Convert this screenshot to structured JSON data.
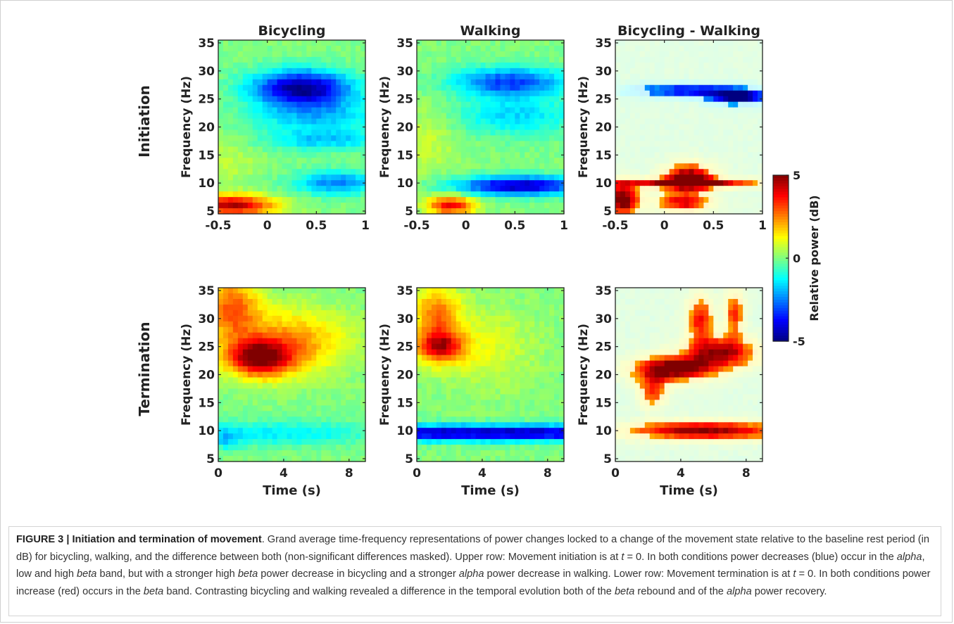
{
  "chart_data": {
    "type": "heatmap",
    "colormap": "jet",
    "colorbar": {
      "label": "Relative power (dB)",
      "ticks": [
        5,
        0,
        -5
      ],
      "range": [
        -5,
        5
      ]
    },
    "row_labels": [
      "Initiation",
      "Termination"
    ],
    "column_titles": [
      "Bicycling",
      "Walking",
      "Bicycling - Walking"
    ],
    "ylabel": "Frequency (Hz)",
    "xlabel": "Time (s)",
    "yticks": [
      5,
      10,
      15,
      20,
      25,
      30,
      35
    ],
    "ylim": [
      4.5,
      35.5
    ],
    "rows": [
      {
        "xlim": [
          -0.5,
          1
        ],
        "xticks": [
          -0.5,
          0,
          0.5,
          1
        ],
        "xticklabels": [
          "-0.5",
          "0",
          "0.5",
          "1"
        ]
      },
      {
        "xlim": [
          0,
          9
        ],
        "xticks": [
          0,
          4,
          8
        ],
        "xticklabels": [
          "0",
          "4",
          "8"
        ]
      }
    ],
    "panels": [
      {
        "row": 0,
        "col": 0,
        "masked": false,
        "features": [
          {
            "t": 0.35,
            "f": 27,
            "st": 0.35,
            "sf": 2.2,
            "v": -4.8
          },
          {
            "t": 0.5,
            "f": 22,
            "st": 0.45,
            "sf": 2.5,
            "v": -1.8
          },
          {
            "t": 0.6,
            "f": 17.5,
            "st": 0.45,
            "sf": 1.3,
            "v": -1.5
          },
          {
            "t": 0.7,
            "f": 10,
            "st": 0.3,
            "sf": 1.5,
            "v": -2.5
          },
          {
            "t": -0.35,
            "f": 6,
            "st": 0.3,
            "sf": 1.3,
            "v": 4.5
          },
          {
            "t": -0.4,
            "f": 14,
            "st": 0.25,
            "sf": 3,
            "v": 0.6
          }
        ]
      },
      {
        "row": 0,
        "col": 1,
        "masked": false,
        "features": [
          {
            "t": 0.45,
            "f": 28,
            "st": 0.4,
            "sf": 1.8,
            "v": -3.2
          },
          {
            "t": 0.5,
            "f": 22,
            "st": 0.45,
            "sf": 2.5,
            "v": -1.6
          },
          {
            "t": 0.55,
            "f": 9.5,
            "st": 0.45,
            "sf": 1.2,
            "v": -4.5
          },
          {
            "t": -0.15,
            "f": 6,
            "st": 0.17,
            "sf": 1.2,
            "v": 3.8
          },
          {
            "t": -0.4,
            "f": 18,
            "st": 0.25,
            "sf": 5,
            "v": 0.7
          }
        ]
      },
      {
        "row": 0,
        "col": 2,
        "masked": true,
        "features": [
          {
            "t": 0.2,
            "f": 26.5,
            "st": 0.45,
            "sf": 0.9,
            "v": -3.2
          },
          {
            "t": 0.75,
            "f": 25.3,
            "st": 0.22,
            "sf": 1,
            "v": -4.3
          },
          {
            "t": 0.25,
            "f": 11,
            "st": 0.18,
            "sf": 1.8,
            "v": 4.6
          },
          {
            "t": -0.42,
            "f": 7,
            "st": 0.12,
            "sf": 2,
            "v": 4.8
          },
          {
            "t": 0.25,
            "f": 10,
            "st": 0.55,
            "sf": 0.6,
            "v": 4.2
          },
          {
            "t": 0.2,
            "f": 6.5,
            "st": 0.2,
            "sf": 1.2,
            "v": 3.5
          }
        ]
      },
      {
        "row": 1,
        "col": 0,
        "masked": false,
        "features": [
          {
            "t": 2.5,
            "f": 23,
            "st": 1.4,
            "sf": 2.3,
            "v": 4.6
          },
          {
            "t": 4.5,
            "f": 26,
            "st": 2.5,
            "sf": 4,
            "v": 2.2
          },
          {
            "t": 0.8,
            "f": 32,
            "st": 1.2,
            "sf": 4,
            "v": 2.8
          },
          {
            "t": 4,
            "f": 9.5,
            "st": 4,
            "sf": 1.5,
            "v": -1.4
          },
          {
            "t": 0.5,
            "f": 8.5,
            "st": 0.6,
            "sf": 1.5,
            "v": -1.2
          }
        ]
      },
      {
        "row": 1,
        "col": 1,
        "masked": false,
        "features": [
          {
            "t": 1.4,
            "f": 25,
            "st": 1,
            "sf": 2,
            "v": 3.8
          },
          {
            "t": 1.2,
            "f": 31,
            "st": 1,
            "sf": 3.5,
            "v": 2.4
          },
          {
            "t": 4,
            "f": 25,
            "st": 2.2,
            "sf": 5,
            "v": 1
          },
          {
            "t": 4.5,
            "f": 9.6,
            "st": 10,
            "sf": 1,
            "v": -4.6
          }
        ]
      },
      {
        "row": 1,
        "col": 2,
        "masked": true,
        "features": [
          {
            "t": 3.5,
            "f": 21,
            "st": 1.8,
            "sf": 1.6,
            "v": 4.8
          },
          {
            "t": 6.5,
            "f": 24,
            "st": 1.6,
            "sf": 2,
            "v": 4
          },
          {
            "t": 5.2,
            "f": 30,
            "st": 0.6,
            "sf": 3,
            "v": 3.2
          },
          {
            "t": 7.3,
            "f": 31,
            "st": 0.4,
            "sf": 3,
            "v": 3
          },
          {
            "t": 2.3,
            "f": 17,
            "st": 0.6,
            "sf": 2,
            "v": 3
          },
          {
            "t": 5.5,
            "f": 10,
            "st": 3.5,
            "sf": 1.2,
            "v": 4.3
          }
        ]
      }
    ]
  },
  "caption": {
    "label": "FIGURE 3 | Initiation and termination of movement",
    "text_1": ". Grand average time-frequency representations of power changes locked to a change of the movement state relative to the baseline rest period (in dB) for bicycling, walking, and the difference between both (non-significant differences masked). Upper row: Movement initiation is at ",
    "t_var": "t",
    "eq": " = 0. In both conditions power decreases (blue) occur in the ",
    "alpha": "alpha",
    "text_2": ", low and high ",
    "beta": "beta",
    "text_3": " band, but with a stronger high ",
    "text_4": " power decrease in bicycling and a stronger ",
    "text_5": " power decrease in walking. Lower row: Movement termination is at ",
    "text_6": " = 0. In both conditions power increase (red) occurs in the ",
    "text_7": " band. Contrasting bicycling and walking revealed a difference in the temporal evolution both of the ",
    "text_8": " rebound and of the ",
    "text_9": " power recovery."
  }
}
